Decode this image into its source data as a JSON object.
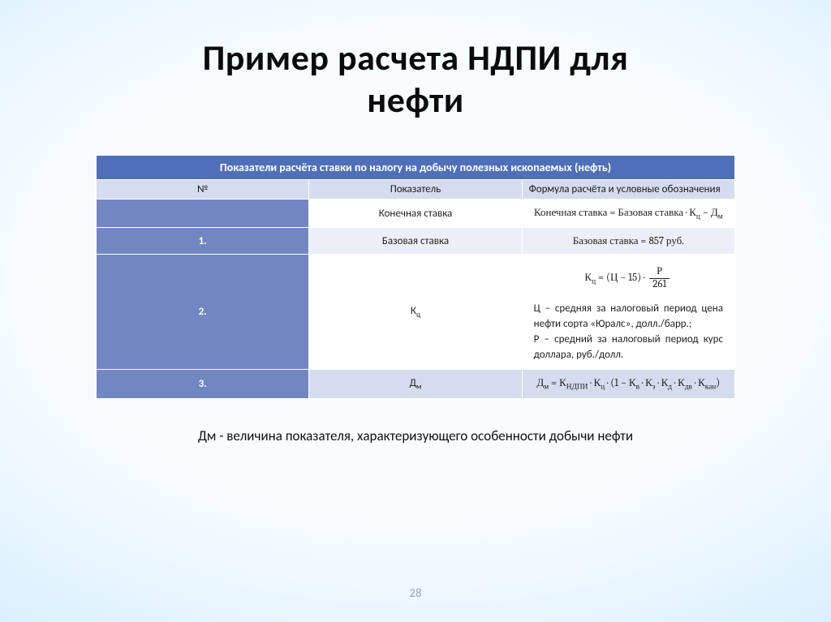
{
  "title_line1": "Пример расчета НДПИ для",
  "title_line2": "нефти",
  "table": {
    "header": "Показатели расчёта ставки по налогу на добычу полезных ископаемых (нефть)",
    "col_num": "№",
    "col_ind": "Показатель",
    "col_formula": "Формула расчёта и условные обозначения",
    "rows": {
      "r0": {
        "num": "",
        "ind": "Конечная ставка",
        "formula": "Конечная ставка = Базовая ставка · К<span class=\"sub\">ц</span> − Д<span class=\"sub\">м</span>"
      },
      "r1": {
        "num": "1.",
        "ind": "Базовая ставка",
        "formula": "Базовая ставка = 857 руб."
      },
      "r2": {
        "num": "2.",
        "ind": "К<span class=\"sub\">ц</span>",
        "formula": "К<span class=\"sub\">ц</span> = (Ц − 15) · <span class=\"frac\"><span class=\"top\">Р</span><span class=\"bot\">261</span></span>",
        "note_c": "Ц – средняя за налоговый период цена нефти сорта «Юралс», долл./барр.;",
        "note_p": "Р – средний за налоговый период курс доллара, руб./долл."
      },
      "r3": {
        "num": "3.",
        "ind": "Д<span class=\"sub\">м</span>",
        "formula": "Д<span class=\"sub\">м</span> = К<span class=\"sub\">НДПИ</span> · К<span class=\"sub\">ц</span> · (1 − К<span class=\"sub\">в</span> · К<span class=\"sub\">з</span> · К<span class=\"sub\">д</span> · К<span class=\"sub\">дв</span> · К<span class=\"sub\">кан</span>)"
      }
    }
  },
  "footnote": "Дм - величина показателя, характеризующего особенности добычи нефти",
  "page_number": "28",
  "colors": {
    "header_bg": "#4f6fb8",
    "numcell_bg": "#7287c2",
    "subrow_bg": "#d5dcee",
    "alt_bg": "#eceff8",
    "white": "#ffffff",
    "pagenum": "#9aa6b2"
  }
}
